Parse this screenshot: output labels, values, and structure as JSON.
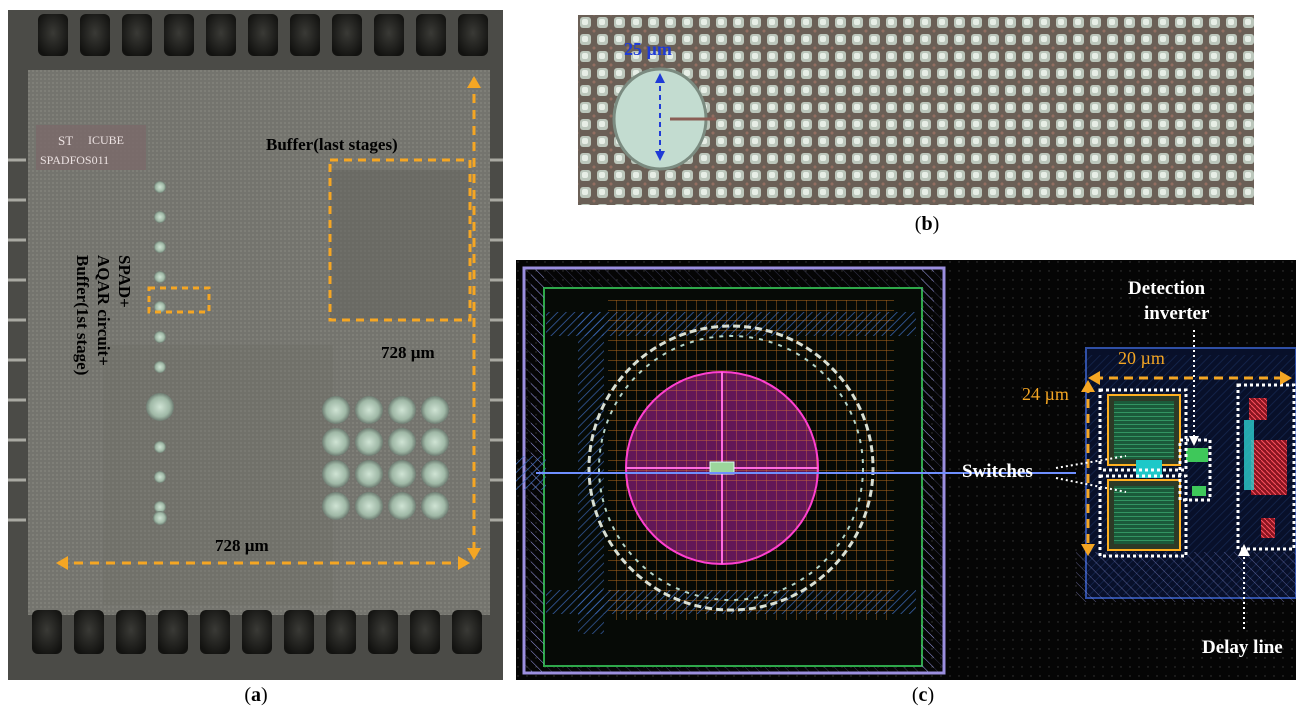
{
  "panel_a": {
    "caption_open": "(",
    "caption_letter": "a",
    "caption_close": ")",
    "chip_logo_top": "ICUBE",
    "chip_logo_bottom": "SPADFOS011",
    "label_buffer_last": "Buffer(last stages)",
    "label_spad_line1": "SPAD+",
    "label_spad_line2": "AQAR circuit+",
    "label_spad_line3": "Buffer(1st stage)",
    "label_height": "728 µm",
    "label_width": "728 µm"
  },
  "panel_b": {
    "caption_open": "(",
    "caption_letter": "b",
    "caption_close": ")",
    "label_diameter": "25 µm"
  },
  "panel_c": {
    "caption_open": "(",
    "caption_letter": "c",
    "caption_close": ")",
    "label_detection_line1": "Detection",
    "label_detection_line2": "inverter",
    "label_switches": "Switches",
    "label_delay": "Delay line",
    "label_w": "20 µm",
    "label_h": "24 µm"
  },
  "colors": {
    "annotation_orange": "#f5a623",
    "annotation_blue": "#1f3bd6",
    "layout_bg": "#050505",
    "chip_surface": "#6e6e68"
  }
}
